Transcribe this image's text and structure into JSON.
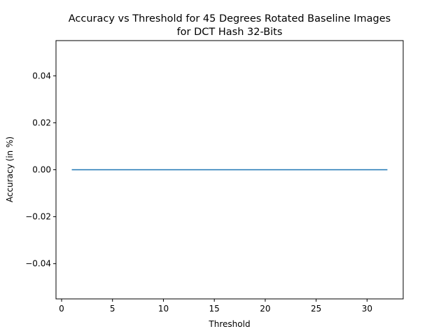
{
  "chart_data": {
    "type": "line",
    "title": "Accuracy vs Threshold for 45 Degrees Rotated Baseline Images",
    "subtitle": "for DCT Hash 32-Bits",
    "xlabel": "Threshold",
    "ylabel": "Accuracy (in %)",
    "xlim": [
      -0.55,
      33.55
    ],
    "ylim": [
      -0.055,
      0.055
    ],
    "xticks": [
      0,
      5,
      10,
      15,
      20,
      25,
      30
    ],
    "yticks": [
      -0.04,
      -0.02,
      0.0,
      0.02,
      0.04
    ],
    "ytick_labels": [
      "−0.04",
      "−0.02",
      "0.00",
      "0.02",
      "0.04"
    ],
    "grid": false,
    "series": [
      {
        "color": "#1f77b4",
        "x": [
          1,
          2,
          3,
          4,
          5,
          6,
          7,
          8,
          9,
          10,
          11,
          12,
          13,
          14,
          15,
          16,
          17,
          18,
          19,
          20,
          21,
          22,
          23,
          24,
          25,
          26,
          27,
          28,
          29,
          30,
          31,
          32
        ],
        "y": [
          0,
          0,
          0,
          0,
          0,
          0,
          0,
          0,
          0,
          0,
          0,
          0,
          0,
          0,
          0,
          0,
          0,
          0,
          0,
          0,
          0,
          0,
          0,
          0,
          0,
          0,
          0,
          0,
          0,
          0,
          0,
          0
        ]
      }
    ]
  }
}
